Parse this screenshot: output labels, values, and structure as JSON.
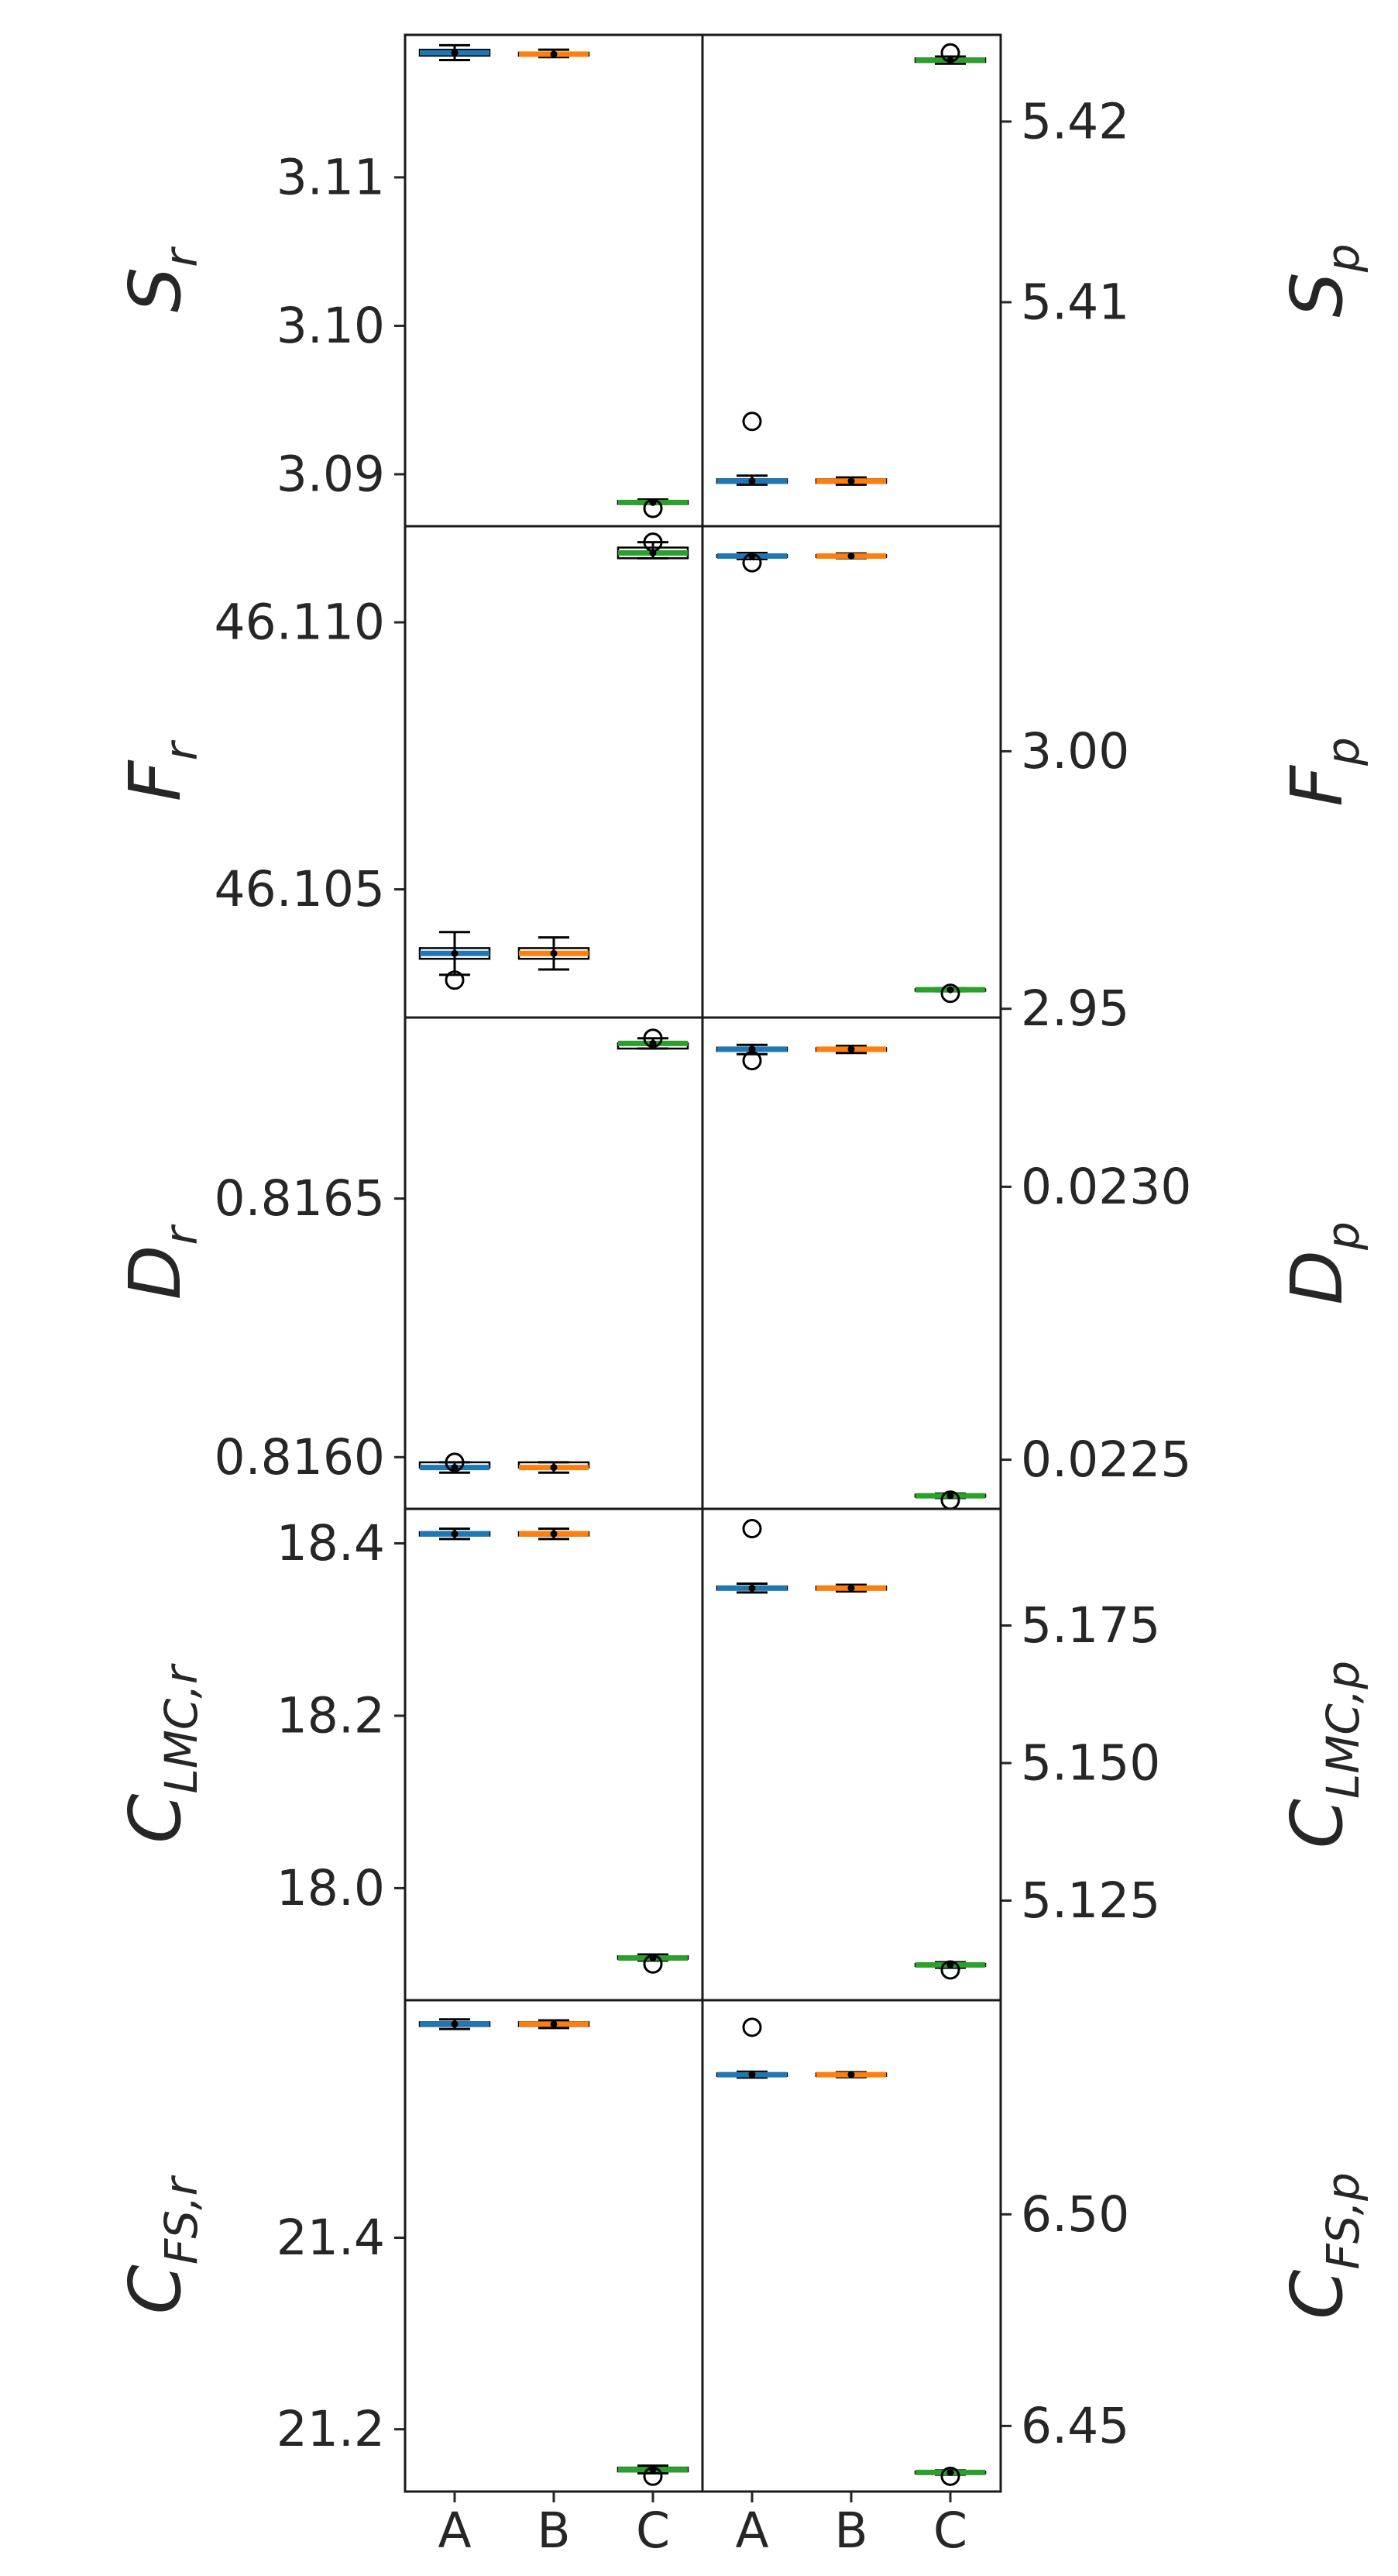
{
  "chart_data": {
    "type": "box",
    "categories": [
      "A",
      "B",
      "C"
    ],
    "series_colors": {
      "A": "#1f77b4",
      "B": "#ff7f0e",
      "C": "#2ca02c"
    },
    "rows": [
      {
        "left": {
          "label_main": "S",
          "label_sub": "r",
          "ylim": [
            3.0865,
            3.1196
          ],
          "yticks": [
            "3.11",
            "3.10",
            "3.09"
          ],
          "boxes": [
            {
              "cat": "A",
              "min": 3.1179,
              "q1": 3.1182,
              "median": 3.1184,
              "q3": 3.1186,
              "max": 3.1189,
              "outliers": []
            },
            {
              "cat": "B",
              "min": 3.1181,
              "q1": 3.1182,
              "median": 3.1183,
              "q3": 3.1184,
              "max": 3.1186,
              "outliers": []
            },
            {
              "cat": "C",
              "min": 3.088,
              "q1": 3.088,
              "median": 3.0881,
              "q3": 3.0882,
              "max": 3.0883,
              "outliers": [
                3.0877
              ]
            }
          ]
        },
        "right": {
          "label_main": "S",
          "label_sub": "p",
          "ylim": [
            5.3976,
            5.4248
          ],
          "yticks": [
            "5.42",
            "5.41"
          ],
          "boxes": [
            {
              "cat": "A",
              "min": 5.3999,
              "q1": 5.4,
              "median": 5.4001,
              "q3": 5.4002,
              "max": 5.4004,
              "outliers": [
                5.4034
              ]
            },
            {
              "cat": "B",
              "min": 5.3999,
              "q1": 5.4,
              "median": 5.4001,
              "q3": 5.4002,
              "max": 5.4003,
              "outliers": []
            },
            {
              "cat": "C",
              "min": 5.4232,
              "q1": 5.4233,
              "median": 5.4234,
              "q3": 5.4235,
              "max": 5.4236,
              "outliers": [
                5.4238
              ]
            }
          ]
        }
      },
      {
        "left": {
          "label_main": "F",
          "label_sub": "r",
          "ylim": [
            46.1026,
            46.1118
          ],
          "yticks": [
            "46.110",
            "46.105"
          ],
          "boxes": [
            {
              "cat": "A",
              "min": 46.1034,
              "q1": 46.1037,
              "median": 46.1038,
              "q3": 46.1039,
              "max": 46.1042,
              "outliers": [
                46.1033
              ]
            },
            {
              "cat": "B",
              "min": 46.1035,
              "q1": 46.1037,
              "median": 46.1038,
              "q3": 46.1039,
              "max": 46.1041,
              "outliers": []
            },
            {
              "cat": "C",
              "min": 46.1112,
              "q1": 46.1112,
              "median": 46.1113,
              "q3": 46.1114,
              "max": 46.1115,
              "outliers": [
                46.1115
              ]
            }
          ]
        },
        "right": {
          "label_main": "F",
          "label_sub": "p",
          "ylim": [
            2.9483,
            3.0437
          ],
          "yticks": [
            "3.00",
            "2.95"
          ],
          "boxes": [
            {
              "cat": "A",
              "min": 3.0373,
              "q1": 3.0377,
              "median": 3.0379,
              "q3": 3.0381,
              "max": 3.0385,
              "outliers": [
                3.0366
              ]
            },
            {
              "cat": "B",
              "min": 3.0375,
              "q1": 3.0377,
              "median": 3.0379,
              "q3": 3.0381,
              "max": 3.0384,
              "outliers": []
            },
            {
              "cat": "C",
              "min": 2.9534,
              "q1": 2.9536,
              "median": 2.9537,
              "q3": 2.9538,
              "max": 2.954,
              "outliers": [
                2.953
              ]
            }
          ]
        }
      },
      {
        "left": {
          "label_main": "D",
          "label_sub": "r",
          "ylim": [
            0.8159,
            0.81685
          ],
          "yticks": [
            "0.8165",
            "0.8160"
          ],
          "boxes": [
            {
              "cat": "A",
              "min": 0.81597,
              "q1": 0.81598,
              "median": 0.81598,
              "q3": 0.81599,
              "max": 0.81599,
              "outliers": [
                0.81599
              ]
            },
            {
              "cat": "B",
              "min": 0.81597,
              "q1": 0.81598,
              "median": 0.81598,
              "q3": 0.81599,
              "max": 0.81599,
              "outliers": []
            },
            {
              "cat": "C",
              "min": 0.81679,
              "q1": 0.81679,
              "median": 0.8168,
              "q3": 0.8168,
              "max": 0.81681,
              "outliers": [
                0.81681
              ]
            }
          ]
        },
        "right": {
          "label_main": "D",
          "label_sub": "p",
          "ylim": [
            0.02241,
            0.02331
          ],
          "yticks": [
            "0.0230",
            "0.0225"
          ],
          "boxes": [
            {
              "cat": "A",
              "min": 0.023243,
              "q1": 0.023249,
              "median": 0.023252,
              "q3": 0.023255,
              "max": 0.02326,
              "outliers": [
                0.023231
              ]
            },
            {
              "cat": "B",
              "min": 0.023245,
              "q1": 0.023249,
              "median": 0.023252,
              "q3": 0.023254,
              "max": 0.023258,
              "outliers": []
            },
            {
              "cat": "C",
              "min": 0.02243,
              "q1": 0.022432,
              "median": 0.022434,
              "q3": 0.022436,
              "max": 0.022438,
              "outliers": [
                0.022426
              ]
            }
          ]
        }
      },
      {
        "left": {
          "label_main": "C",
          "label_sub": "LMC,r",
          "ylim": [
            17.87,
            18.44
          ],
          "yticks": [
            "18.4",
            "18.2",
            "18.0"
          ],
          "boxes": [
            {
              "cat": "A",
              "min": 18.405,
              "q1": 18.409,
              "median": 18.411,
              "q3": 18.413,
              "max": 18.417,
              "outliers": []
            },
            {
              "cat": "B",
              "min": 18.405,
              "q1": 18.409,
              "median": 18.411,
              "q3": 18.413,
              "max": 18.417,
              "outliers": []
            },
            {
              "cat": "C",
              "min": 17.916,
              "q1": 17.918,
              "median": 17.919,
              "q3": 17.921,
              "max": 17.923,
              "outliers": [
                17.912
              ]
            }
          ]
        },
        "right": {
          "label_main": "C",
          "label_sub": "LMC,p",
          "ylim": [
            5.1069,
            5.1962
          ],
          "yticks": [
            "5.175",
            "5.150",
            "5.125"
          ],
          "boxes": [
            {
              "cat": "A",
              "min": 5.181,
              "q1": 5.1815,
              "median": 5.1818,
              "q3": 5.1821,
              "max": 5.1826,
              "outliers": [
                5.1926
              ]
            },
            {
              "cat": "B",
              "min": 5.1812,
              "q1": 5.1815,
              "median": 5.1818,
              "q3": 5.1821,
              "max": 5.1824,
              "outliers": []
            },
            {
              "cat": "C",
              "min": 5.1128,
              "q1": 5.1131,
              "median": 5.1133,
              "q3": 5.1135,
              "max": 5.1138,
              "outliers": [
                5.1124
              ]
            }
          ]
        }
      },
      {
        "left": {
          "label_main": "C",
          "label_sub": "FS,r",
          "ylim": [
            21.135,
            21.648
          ],
          "yticks": [
            "21.4",
            "21.2"
          ],
          "boxes": [
            {
              "cat": "A",
              "min": 21.618,
              "q1": 21.621,
              "median": 21.623,
              "q3": 21.625,
              "max": 21.628,
              "outliers": []
            },
            {
              "cat": "B",
              "min": 21.619,
              "q1": 21.621,
              "median": 21.623,
              "q3": 21.625,
              "max": 21.627,
              "outliers": []
            },
            {
              "cat": "C",
              "min": 21.154,
              "q1": 21.156,
              "median": 21.158,
              "q3": 21.16,
              "max": 21.162,
              "outliers": [
                21.151
              ]
            }
          ]
        },
        "right": {
          "label_main": "C",
          "label_sub": "FS,p",
          "ylim": [
            6.4345,
            6.5506
          ],
          "yticks": [
            "6.50",
            "6.45"
          ],
          "boxes": [
            {
              "cat": "A",
              "min": 6.5323,
              "q1": 6.5327,
              "median": 6.533,
              "q3": 6.5333,
              "max": 6.5337,
              "outliers": [
                6.5442
              ]
            },
            {
              "cat": "B",
              "min": 6.5324,
              "q1": 6.5327,
              "median": 6.533,
              "q3": 6.5333,
              "max": 6.5336,
              "outliers": []
            },
            {
              "cat": "C",
              "min": 6.4385,
              "q1": 6.4388,
              "median": 6.439,
              "q3": 6.4392,
              "max": 6.4395,
              "outliers": [
                6.4381
              ]
            }
          ]
        }
      }
    ]
  }
}
